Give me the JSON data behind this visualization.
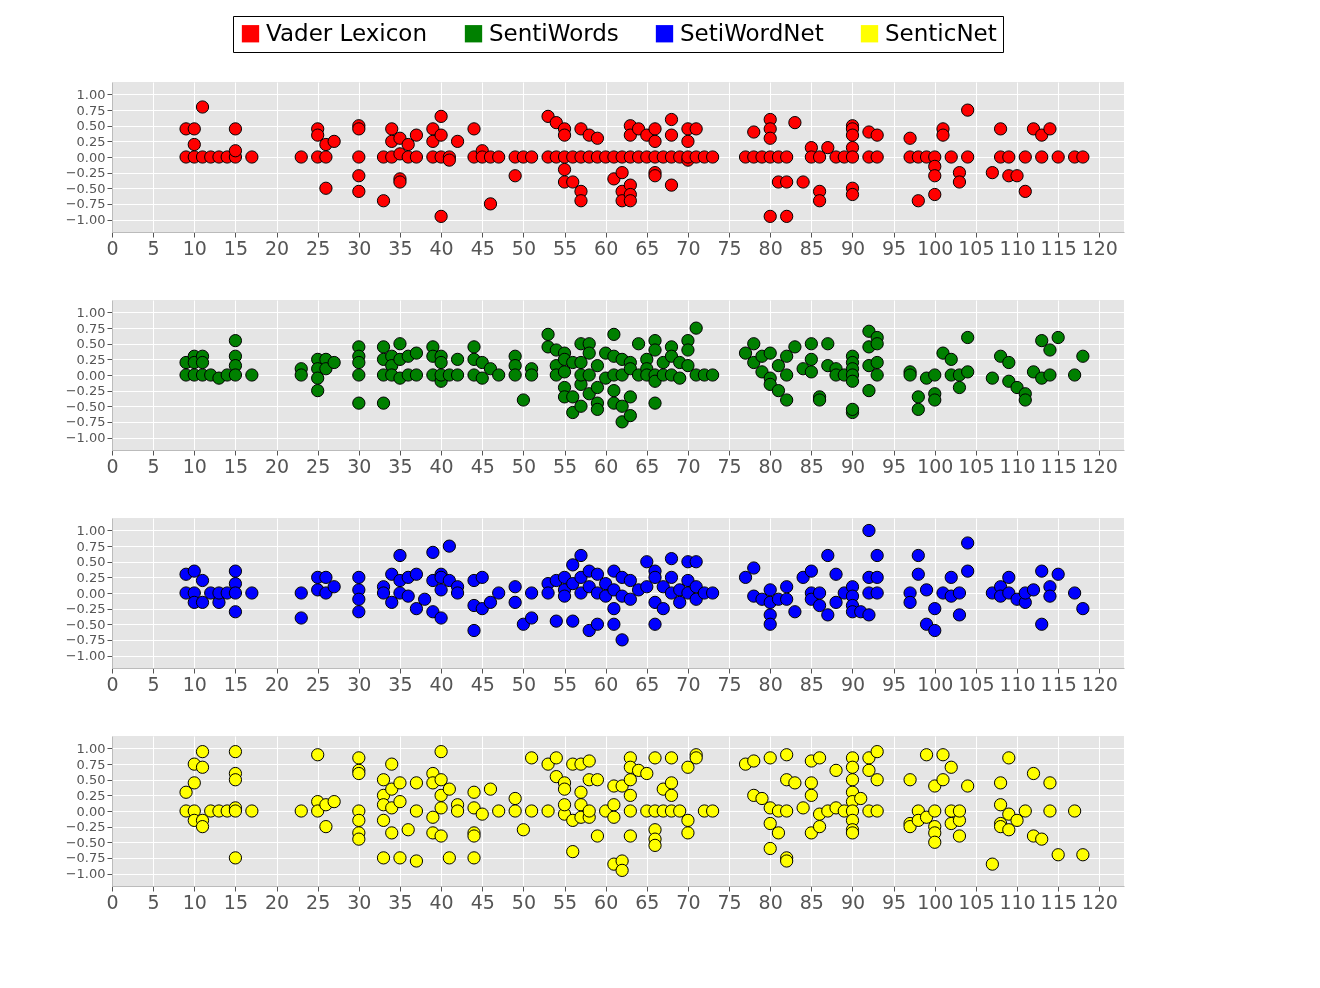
{
  "chart_data": [
    {
      "type": "scatter",
      "legend": "top",
      "grid": true,
      "marker": "circle",
      "xlim": [
        0,
        123
      ],
      "xticks": [
        0,
        5,
        10,
        15,
        20,
        25,
        30,
        35,
        40,
        45,
        50,
        55,
        60,
        65,
        70,
        75,
        80,
        85,
        90,
        95,
        100,
        105,
        110,
        115,
        120
      ],
      "ylim": [
        -1.2,
        1.2
      ],
      "yticks": [
        {
          "value": -1,
          "label": "−1.00"
        },
        {
          "value": -0.75,
          "label": "−0.75"
        },
        {
          "value": -0.5,
          "label": "−0.50"
        },
        {
          "value": -0.25,
          "label": "−0.25"
        },
        {
          "value": 0,
          "label": "0.00"
        },
        {
          "value": 0.25,
          "label": "0.25"
        },
        {
          "value": 0.5,
          "label": "0.50"
        },
        {
          "value": 0.75,
          "label": "0.75"
        },
        {
          "value": 1,
          "label": "1.00"
        }
      ],
      "series": [
        {
          "name": "Vader Lexicon",
          "color": "#ff0000",
          "x": [
            9,
            9,
            10,
            10,
            10,
            11,
            11,
            12,
            13,
            14,
            15,
            15,
            15,
            17,
            23,
            25,
            25,
            25,
            26,
            26,
            26,
            27,
            30,
            30,
            30,
            30,
            30,
            33,
            33,
            34,
            34,
            34,
            35,
            35,
            35,
            35,
            36,
            36,
            37,
            37,
            39,
            39,
            39,
            40,
            40,
            40,
            40,
            41,
            41,
            42,
            44,
            44,
            45,
            45,
            46,
            46,
            47,
            49,
            49,
            50,
            51,
            53,
            53,
            54,
            54,
            55,
            55,
            55,
            55,
            55,
            56,
            56,
            57,
            57,
            57,
            57,
            58,
            58,
            59,
            59,
            60,
            61,
            61,
            62,
            62,
            62,
            62,
            63,
            63,
            63,
            63,
            63,
            63,
            64,
            64,
            65,
            65,
            66,
            66,
            66,
            66,
            66,
            67,
            68,
            68,
            68,
            68,
            69,
            70,
            70,
            70,
            70,
            71,
            71,
            72,
            73,
            77,
            78,
            78,
            79,
            80,
            80,
            80,
            80,
            80,
            81,
            81,
            82,
            82,
            82,
            83,
            84,
            85,
            85,
            86,
            86,
            86,
            87,
            88,
            89,
            90,
            90,
            90,
            90,
            90,
            90,
            90,
            92,
            92,
            93,
            93,
            97,
            97,
            98,
            98,
            99,
            100,
            100,
            100,
            100,
            101,
            101,
            102,
            103,
            103,
            104,
            104,
            107,
            108,
            108,
            109,
            109,
            110,
            111,
            111,
            112,
            113,
            113,
            114,
            115,
            117,
            118
          ],
          "values": [
            0,
            0.45,
            0,
            0.45,
            0.2,
            0.8,
            0,
            0,
            0,
            0,
            0,
            0.45,
            0.1,
            0,
            0,
            0,
            0.45,
            0.35,
            0,
            0.2,
            -0.5,
            0.25,
            0,
            0.5,
            0.45,
            -0.3,
            -0.55,
            0,
            -0.7,
            0,
            0.45,
            0.25,
            -0.35,
            -0.4,
            0.3,
            0.05,
            0.2,
            0,
            0.35,
            0,
            0.45,
            0.25,
            0,
            0.65,
            0.35,
            0,
            -0.95,
            0,
            -0.05,
            0.25,
            0.45,
            0,
            0.1,
            0,
            0,
            -0.75,
            0,
            0,
            -0.3,
            0,
            0,
            0.65,
            0,
            0.55,
            0,
            0.45,
            0.35,
            -0.2,
            -0.4,
            0,
            -0.4,
            0,
            0.45,
            -0.55,
            -0.7,
            0,
            0.35,
            0,
            0.3,
            0,
            0,
            -0.35,
            0,
            -0.25,
            -0.55,
            -0.7,
            0,
            0.5,
            0.35,
            -0.45,
            -0.6,
            -0.7,
            0,
            0.45,
            0,
            0.35,
            0,
            0.45,
            0.25,
            -0.25,
            -0.3,
            0,
            0,
            0.6,
            0.35,
            -0.45,
            0,
            0,
            0.45,
            0.25,
            -0.05,
            0,
            0.45,
            0,
            0,
            0,
            0,
            0.4,
            0,
            0,
            0.6,
            0.45,
            0.3,
            0,
            -0.95,
            0,
            -0.4,
            0,
            -0.4,
            -0.95,
            0.55,
            -0.4,
            0.15,
            0,
            0,
            -0.55,
            -0.7,
            0.15,
            0,
            0,
            0.5,
            0.45,
            0.35,
            0.15,
            0,
            -0.5,
            -0.6,
            0.4,
            0,
            0.35,
            0,
            0.3,
            0,
            0,
            -0.7,
            0,
            0,
            -0.15,
            -0.3,
            -0.6,
            0.45,
            0.35,
            0,
            -0.25,
            -0.4,
            0.75,
            0,
            -0.25,
            0.45,
            0,
            0,
            -0.3,
            -0.3,
            -0.55,
            0,
            0.45,
            0.35,
            0,
            0.45,
            0,
            0,
            0
          ]
        }
      ]
    },
    {
      "type": "scatter",
      "grid": true,
      "marker": "circle",
      "xlim": [
        0,
        123
      ],
      "xticks": [
        0,
        5,
        10,
        15,
        20,
        25,
        30,
        35,
        40,
        45,
        50,
        55,
        60,
        65,
        70,
        75,
        80,
        85,
        90,
        95,
        100,
        105,
        110,
        115,
        120
      ],
      "ylim": [
        -1.2,
        1.2
      ],
      "yticks": [
        {
          "value": -1,
          "label": "−1.00"
        },
        {
          "value": -0.75,
          "label": "−0.75"
        },
        {
          "value": -0.5,
          "label": "−0.50"
        },
        {
          "value": -0.25,
          "label": "−0.25"
        },
        {
          "value": 0,
          "label": "0.00"
        },
        {
          "value": 0.25,
          "label": "0.25"
        },
        {
          "value": 0.5,
          "label": "0.50"
        },
        {
          "value": 0.75,
          "label": "0.75"
        },
        {
          "value": 1,
          "label": "1.00"
        }
      ],
      "series": [
        {
          "name": "SentiWords",
          "color": "#008000",
          "x": [
            9,
            9,
            10,
            10,
            10,
            11,
            11,
            11,
            12,
            13,
            14,
            15,
            15,
            15,
            15,
            17,
            23,
            23,
            25,
            25,
            25,
            25,
            26,
            26,
            27,
            30,
            30,
            30,
            30,
            30,
            33,
            33,
            33,
            33,
            34,
            34,
            34,
            35,
            35,
            35,
            36,
            36,
            37,
            37,
            39,
            39,
            39,
            40,
            40,
            40,
            40,
            41,
            42,
            42,
            44,
            44,
            44,
            45,
            45,
            46,
            47,
            49,
            49,
            49,
            50,
            51,
            51,
            53,
            53,
            54,
            54,
            54,
            55,
            55,
            55,
            55,
            55,
            56,
            56,
            56,
            57,
            57,
            57,
            57,
            57,
            58,
            58,
            58,
            58,
            59,
            59,
            59,
            59,
            60,
            60,
            61,
            61,
            61,
            61,
            61,
            62,
            62,
            62,
            62,
            63,
            63,
            63,
            63,
            64,
            64,
            65,
            65,
            65,
            66,
            66,
            66,
            66,
            66,
            67,
            67,
            68,
            68,
            68,
            69,
            69,
            70,
            70,
            70,
            71,
            71,
            72,
            73,
            77,
            78,
            78,
            79,
            79,
            80,
            80,
            80,
            81,
            81,
            82,
            82,
            82,
            83,
            84,
            85,
            85,
            85,
            86,
            86,
            87,
            87,
            88,
            88,
            89,
            90,
            90,
            90,
            90,
            90,
            90,
            90,
            92,
            92,
            92,
            92,
            93,
            93,
            93,
            93,
            97,
            97,
            98,
            98,
            99,
            100,
            100,
            100,
            101,
            102,
            102,
            103,
            103,
            104,
            104,
            107,
            108,
            109,
            109,
            110,
            111,
            111,
            112,
            113,
            113,
            114,
            114,
            115,
            117,
            118
          ],
          "values": [
            0.2,
            0,
            0.3,
            0.2,
            0,
            0.3,
            0.2,
            0,
            0,
            -0.05,
            0,
            0.55,
            0.3,
            0.15,
            0,
            0,
            0.1,
            0,
            0.25,
            0.1,
            -0.05,
            -0.25,
            0.25,
            0.1,
            0.2,
            0.45,
            0.3,
            0.2,
            0,
            -0.45,
            0.45,
            0.25,
            0,
            -0.45,
            0.3,
            0.15,
            0,
            0.5,
            0.25,
            -0.05,
            0.3,
            0,
            0.35,
            0,
            0.45,
            0.3,
            0,
            0.3,
            0.2,
            -0.1,
            0,
            0,
            0.25,
            0,
            0.45,
            0.25,
            0,
            -0.05,
            0.2,
            0.1,
            0,
            0.3,
            0.15,
            0,
            -0.4,
            0.1,
            0,
            0.65,
            0.45,
            0.4,
            0.15,
            0,
            0.35,
            0.25,
            -0.2,
            -0.35,
            0.05,
            0.2,
            -0.6,
            -0.35,
            0.5,
            0.2,
            -0.15,
            -0.5,
            0,
            0.5,
            0.35,
            -0.3,
            0,
            -0.2,
            -0.45,
            -0.55,
            0.15,
            0.35,
            -0.05,
            0.65,
            0.3,
            -0.25,
            -0.45,
            0,
            0.25,
            -0.5,
            -0.75,
            0,
            0.2,
            -0.35,
            -0.65,
            0.1,
            0.5,
            0,
            0.25,
            0.1,
            0,
            0.55,
            0.4,
            -0.45,
            0,
            -0.1,
            0.2,
            0,
            0.45,
            0.3,
            0,
            0.2,
            -0.05,
            0.55,
            0.4,
            0.15,
            0.75,
            0,
            0,
            0,
            0.35,
            0.5,
            0.2,
            0.3,
            0.05,
            0.35,
            -0.05,
            -0.15,
            0.15,
            -0.25,
            0.3,
            0,
            -0.4,
            0.45,
            0.1,
            0.5,
            0.25,
            0.05,
            -0.35,
            -0.4,
            0.5,
            0.15,
            0.1,
            0,
            0,
            0.3,
            0.2,
            0.1,
            0,
            -0.1,
            -0.6,
            -0.55,
            0.7,
            0.45,
            0.15,
            -0.25,
            0.6,
            0.5,
            0.2,
            0,
            0.05,
            0,
            -0.35,
            -0.55,
            -0.05,
            -0.3,
            -0.4,
            0,
            0.35,
            0.25,
            0,
            -0.2,
            0,
            0.6,
            0.05,
            -0.05,
            0.3,
            0.2,
            -0.1,
            -0.2,
            -0.3,
            -0.4,
            0.05,
            0.55,
            -0.05,
            0.4,
            0,
            0.6,
            0,
            0.3
          ]
        }
      ]
    },
    {
      "type": "scatter",
      "grid": true,
      "marker": "circle",
      "xlim": [
        0,
        123
      ],
      "xticks": [
        0,
        5,
        10,
        15,
        20,
        25,
        30,
        35,
        40,
        45,
        50,
        55,
        60,
        65,
        70,
        75,
        80,
        85,
        90,
        95,
        100,
        105,
        110,
        115,
        120
      ],
      "ylim": [
        -1.2,
        1.2
      ],
      "yticks": [
        {
          "value": -1,
          "label": "−1.00"
        },
        {
          "value": -0.75,
          "label": "−0.75"
        },
        {
          "value": -0.5,
          "label": "−0.50"
        },
        {
          "value": -0.25,
          "label": "−0.25"
        },
        {
          "value": 0,
          "label": "0.00"
        },
        {
          "value": 0.25,
          "label": "0.25"
        },
        {
          "value": 0.5,
          "label": "0.50"
        },
        {
          "value": 0.75,
          "label": "0.75"
        },
        {
          "value": 1,
          "label": "1.00"
        }
      ],
      "series": [
        {
          "name": "SetiWordNet",
          "color": "#0000ff",
          "x": [
            9,
            9,
            10,
            10,
            10,
            11,
            11,
            12,
            13,
            13,
            14,
            15,
            15,
            15,
            15,
            17,
            23,
            23,
            25,
            25,
            26,
            26,
            27,
            30,
            30,
            30,
            30,
            33,
            33,
            34,
            34,
            35,
            35,
            35,
            36,
            36,
            37,
            37,
            38,
            39,
            39,
            39,
            40,
            40,
            40,
            40,
            41,
            41,
            42,
            42,
            44,
            44,
            44,
            45,
            45,
            46,
            47,
            49,
            49,
            50,
            51,
            51,
            53,
            53,
            54,
            54,
            55,
            55,
            55,
            56,
            56,
            56,
            57,
            57,
            57,
            58,
            58,
            58,
            59,
            59,
            59,
            60,
            60,
            61,
            61,
            61,
            61,
            62,
            62,
            62,
            63,
            63,
            64,
            65,
            65,
            66,
            66,
            66,
            66,
            67,
            67,
            68,
            68,
            68,
            69,
            69,
            70,
            70,
            70,
            71,
            71,
            71,
            72,
            73,
            77,
            78,
            78,
            79,
            80,
            80,
            80,
            80,
            81,
            82,
            82,
            83,
            84,
            85,
            85,
            85,
            86,
            86,
            87,
            87,
            88,
            88,
            89,
            90,
            90,
            90,
            90,
            91,
            92,
            92,
            92,
            92,
            93,
            93,
            93,
            97,
            97,
            98,
            98,
            99,
            99,
            100,
            100,
            101,
            102,
            102,
            103,
            103,
            104,
            104,
            107,
            108,
            108,
            109,
            109,
            110,
            111,
            111,
            112,
            113,
            113,
            114,
            114,
            115,
            117,
            118
          ],
          "values": [
            0.3,
            0,
            0.35,
            0,
            -0.15,
            0.2,
            -0.15,
            0,
            -0.15,
            0,
            0,
            0.35,
            0.15,
            -0.3,
            0,
            0,
            0,
            -0.4,
            0.25,
            0.05,
            0.25,
            0,
            0.1,
            0.25,
            0.05,
            -0.1,
            -0.3,
            0.1,
            0,
            0.3,
            -0.15,
            0.6,
            0.2,
            0,
            0.25,
            -0.05,
            0.3,
            -0.25,
            -0.1,
            0.65,
            0.2,
            -0.3,
            0.3,
            0.05,
            -0.4,
            0.25,
            0.75,
            0.2,
            0.1,
            0,
            0.2,
            -0.2,
            -0.6,
            0.25,
            -0.25,
            -0.15,
            0,
            0.1,
            -0.15,
            -0.5,
            0,
            -0.4,
            0.15,
            0,
            0.2,
            -0.45,
            0.25,
            0.05,
            -0.05,
            0.45,
            0.15,
            -0.45,
            0.6,
            0.25,
            0,
            0.35,
            0.1,
            -0.6,
            0.3,
            -0.5,
            0,
            0.15,
            -0.05,
            0.35,
            0.05,
            -0.25,
            -0.5,
            0.25,
            -0.75,
            -0.05,
            0.2,
            -0.1,
            0.05,
            0.5,
            0.1,
            0.35,
            0.25,
            -0.15,
            -0.5,
            0.1,
            -0.25,
            0.55,
            0.25,
            0,
            0.05,
            -0.15,
            0.5,
            0.2,
            0,
            0.5,
            -0.1,
            0.1,
            0,
            0,
            0.25,
            0.4,
            -0.05,
            -0.1,
            0.05,
            -0.15,
            -0.35,
            -0.5,
            -0.1,
            0.1,
            -0.1,
            -0.3,
            0.25,
            0.35,
            0,
            -0.1,
            -0.2,
            0,
            0.6,
            -0.35,
            0.3,
            -0.15,
            0,
            0.1,
            -0.05,
            -0.2,
            -0.3,
            -0.3,
            1.0,
            0.25,
            0,
            -0.35,
            0.6,
            0.25,
            0,
            0,
            -0.15,
            0.6,
            0.3,
            0.05,
            -0.5,
            -0.6,
            -0.25,
            0,
            0.25,
            -0.05,
            -0.35,
            0,
            0.8,
            0.35,
            0,
            0.1,
            -0.05,
            0.25,
            0,
            -0.1,
            -0.15,
            0,
            0.05,
            0.35,
            -0.5,
            0.1,
            -0.05,
            0.3,
            0,
            -0.25
          ]
        }
      ]
    },
    {
      "type": "scatter",
      "grid": true,
      "marker": "circle",
      "xlim": [
        0,
        123
      ],
      "xticks": [
        0,
        5,
        10,
        15,
        20,
        25,
        30,
        35,
        40,
        45,
        50,
        55,
        60,
        65,
        70,
        75,
        80,
        85,
        90,
        95,
        100,
        105,
        110,
        115,
        120
      ],
      "ylim": [
        -1.2,
        1.2
      ],
      "yticks": [
        {
          "value": -1,
          "label": "−1.00"
        },
        {
          "value": -0.75,
          "label": "−0.75"
        },
        {
          "value": -0.5,
          "label": "−0.50"
        },
        {
          "value": -0.25,
          "label": "−0.25"
        },
        {
          "value": 0,
          "label": "0.00"
        },
        {
          "value": 0.25,
          "label": "0.25"
        },
        {
          "value": 0.5,
          "label": "0.50"
        },
        {
          "value": 0.75,
          "label": "0.75"
        },
        {
          "value": 1,
          "label": "1.00"
        }
      ],
      "series": [
        {
          "name": "SenticNet",
          "color": "#ffff00",
          "x": [
            9,
            9,
            10,
            10,
            10,
            10,
            11,
            11,
            11,
            11,
            12,
            13,
            14,
            15,
            15,
            15,
            15,
            15,
            15,
            17,
            23,
            25,
            25,
            25,
            26,
            26,
            27,
            30,
            30,
            30,
            30,
            30,
            30,
            30,
            33,
            33,
            33,
            33,
            33,
            34,
            34,
            34,
            34,
            35,
            35,
            35,
            36,
            37,
            37,
            37,
            39,
            39,
            39,
            39,
            40,
            40,
            40,
            40,
            40,
            41,
            41,
            42,
            42,
            44,
            44,
            44,
            44,
            44,
            45,
            46,
            47,
            49,
            49,
            50,
            51,
            51,
            53,
            53,
            54,
            54,
            55,
            55,
            55,
            55,
            56,
            56,
            56,
            57,
            57,
            57,
            57,
            58,
            58,
            58,
            58,
            59,
            59,
            60,
            61,
            61,
            61,
            61,
            62,
            62,
            62,
            63,
            63,
            63,
            63,
            63,
            63,
            64,
            65,
            65,
            66,
            66,
            66,
            66,
            66,
            67,
            67,
            68,
            68,
            68,
            68,
            69,
            70,
            70,
            70,
            71,
            71,
            72,
            73,
            77,
            78,
            78,
            79,
            80,
            80,
            80,
            80,
            81,
            81,
            82,
            82,
            82,
            82,
            82,
            83,
            84,
            85,
            85,
            85,
            85,
            86,
            86,
            86,
            87,
            88,
            88,
            89,
            90,
            90,
            90,
            90,
            90,
            90,
            90,
            90,
            90,
            91,
            92,
            92,
            92,
            93,
            93,
            93,
            97,
            97,
            97,
            98,
            98,
            99,
            99,
            100,
            100,
            100,
            100,
            100,
            101,
            101,
            102,
            102,
            102,
            103,
            103,
            103,
            104,
            107,
            108,
            108,
            108,
            108,
            109,
            109,
            109,
            110,
            111,
            112,
            112,
            113,
            114,
            114,
            115,
            117,
            118
          ],
          "values": [
            0.3,
            0,
            0.75,
            0.45,
            0,
            -0.15,
            0.95,
            0.7,
            -0.15,
            -0.25,
            0,
            0,
            0,
            0.95,
            0.6,
            0.5,
            0.05,
            -0.75,
            0,
            0,
            0,
            0.9,
            0.15,
            0,
            0.1,
            -0.25,
            0.15,
            0.85,
            0.65,
            0.6,
            0,
            -0.15,
            -0.35,
            -0.45,
            0.5,
            0.25,
            0.1,
            -0.15,
            -0.75,
            0.75,
            0.35,
            0.05,
            -0.35,
            0.45,
            0.15,
            -0.75,
            -0.3,
            0.45,
            0,
            -0.8,
            0.6,
            0.45,
            -0.1,
            -0.35,
            0.95,
            0.5,
            0.25,
            0.05,
            -0.4,
            0.35,
            -0.75,
            0.1,
            0,
            0.3,
            0.05,
            -0.35,
            -0.4,
            -0.75,
            -0.05,
            0.35,
            0,
            0.2,
            0,
            -0.3,
            0.85,
            0,
            0.75,
            0,
            0.85,
            0.55,
            0.45,
            0.35,
            -0.05,
            0.1,
            0.75,
            -0.15,
            -0.65,
            0.75,
            0.3,
            0.1,
            -0.1,
            0.8,
            0.5,
            -0.1,
            0,
            0.5,
            -0.4,
            0,
            0.4,
            0.1,
            -0.1,
            -0.85,
            0.4,
            -0.8,
            -0.95,
            0.85,
            0.7,
            0.5,
            0.25,
            0,
            -0.4,
            0.65,
            0.6,
            0,
            0.85,
            -0.3,
            -0.45,
            -0.55,
            0,
            0.35,
            0,
            0.85,
            0.45,
            0.25,
            0,
            0,
            0.7,
            -0.15,
            -0.35,
            0.9,
            0.85,
            0,
            0,
            0.75,
            0.8,
            0.25,
            0.2,
            0.85,
            0.05,
            -0.2,
            -0.6,
            -0.35,
            0,
            0.9,
            0.5,
            0,
            -0.75,
            -0.8,
            0.45,
            0.05,
            0.8,
            0.45,
            0.25,
            -0.35,
            0.85,
            -0.05,
            -0.25,
            0,
            0.65,
            0.05,
            0,
            0.85,
            0.7,
            0.5,
            0.3,
            0.15,
            0,
            -0.15,
            -0.3,
            -0.35,
            0.2,
            0.85,
            0.65,
            0,
            0.95,
            0.5,
            0,
            0.5,
            -0.2,
            -0.25,
            0,
            -0.15,
            0.9,
            -0.1,
            0.4,
            -0.25,
            -0.35,
            -0.5,
            0,
            0.9,
            0.5,
            0.7,
            -0.2,
            0,
            -0.15,
            -0.4,
            0,
            0.4,
            -0.85,
            0.45,
            0.1,
            -0.2,
            -0.25,
            0.85,
            -0.05,
            -0.3,
            -0.15,
            0,
            0.6,
            -0.4,
            -0.45,
            0.45,
            0,
            -0.7,
            0,
            -0.7
          ]
        }
      ]
    }
  ]
}
